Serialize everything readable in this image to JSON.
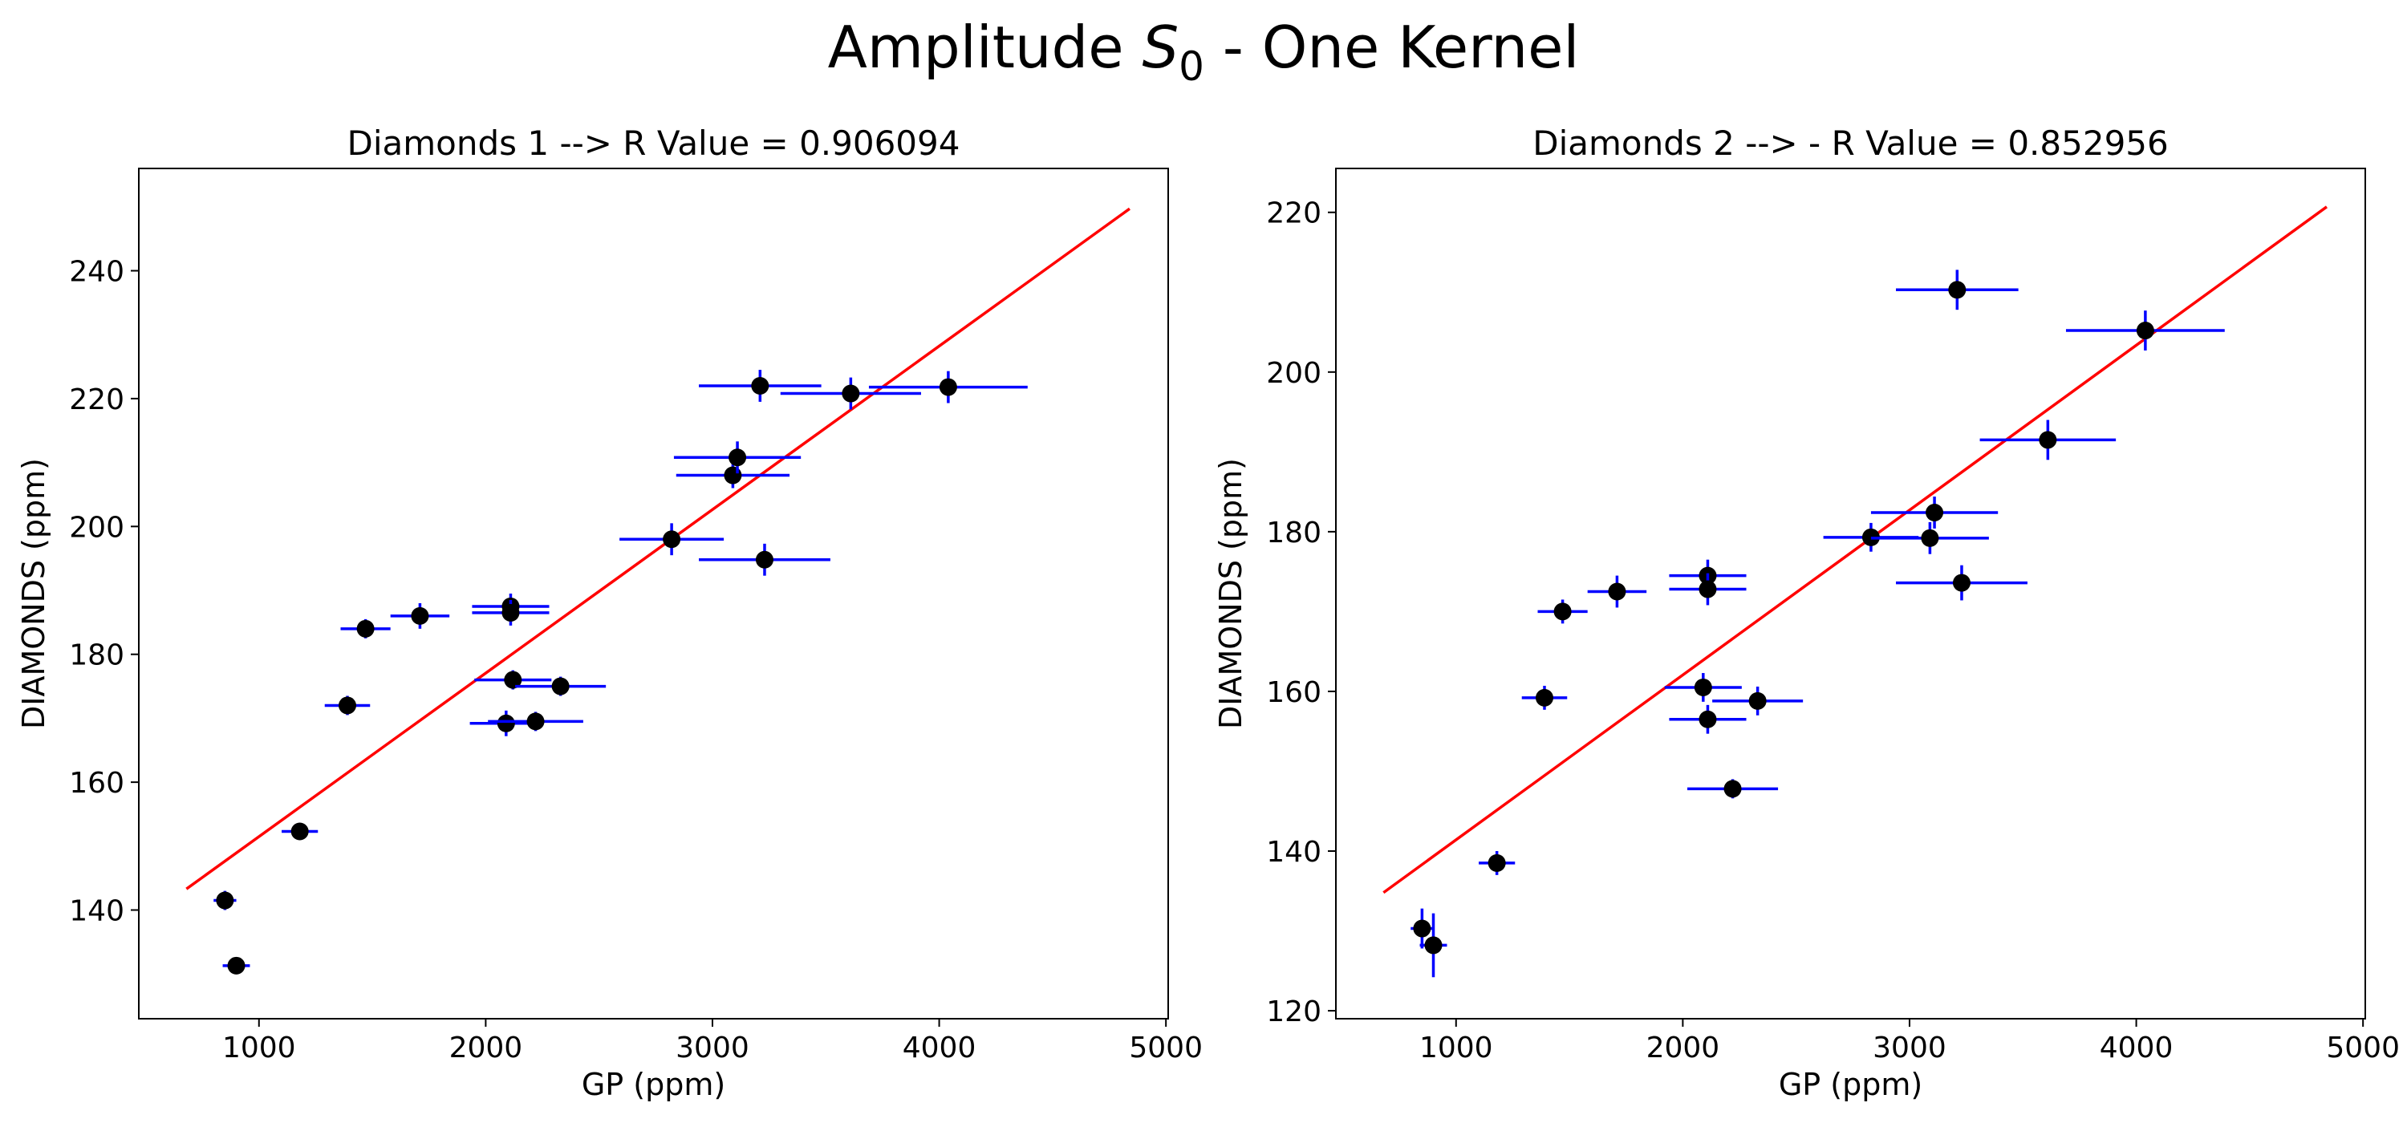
{
  "figure": {
    "suptitle_prefix": "Amplitude ",
    "suptitle_var": "S",
    "suptitle_sub": "0",
    "suptitle_suffix": " - One Kernel"
  },
  "colors": {
    "errorbar": "#0000ff",
    "marker": "#000000",
    "fit_line": "#ff0000"
  },
  "chart_data": [
    {
      "type": "scatter",
      "title": "Diamonds 1 --> R Value = 0.906094",
      "xlabel": "GP (ppm)",
      "ylabel": "DIAMONDS (ppm)",
      "xlim": [
        470,
        5010
      ],
      "ylim": [
        123,
        256
      ],
      "xticks": [
        1000,
        2000,
        3000,
        4000,
        5000
      ],
      "yticks": [
        140,
        160,
        180,
        200,
        220,
        240
      ],
      "grid": false,
      "points": [
        {
          "x": 850,
          "y": 141.5,
          "xerr": 50,
          "yerr": 1.5
        },
        {
          "x": 900,
          "y": 131.3,
          "xerr": 60,
          "yerr": 1.0
        },
        {
          "x": 1180,
          "y": 152.3,
          "xerr": 80,
          "yerr": 1.0
        },
        {
          "x": 1390,
          "y": 172.0,
          "xerr": 100,
          "yerr": 1.5
        },
        {
          "x": 1470,
          "y": 184.0,
          "xerr": 110,
          "yerr": 1.5
        },
        {
          "x": 1710,
          "y": 186.0,
          "xerr": 130,
          "yerr": 2.0
        },
        {
          "x": 2090,
          "y": 169.2,
          "xerr": 160,
          "yerr": 2.0
        },
        {
          "x": 2110,
          "y": 187.5,
          "xerr": 170,
          "yerr": 2.0
        },
        {
          "x": 2110,
          "y": 186.5,
          "xerr": 170,
          "yerr": 2.0
        },
        {
          "x": 2120,
          "y": 176.0,
          "xerr": 170,
          "yerr": 1.5
        },
        {
          "x": 2220,
          "y": 169.5,
          "xerr": 210,
          "yerr": 1.5
        },
        {
          "x": 2330,
          "y": 175.0,
          "xerr": 200,
          "yerr": 1.5
        },
        {
          "x": 2820,
          "y": 198.0,
          "xerr": 230,
          "yerr": 2.5
        },
        {
          "x": 3090,
          "y": 208.0,
          "xerr": 250,
          "yerr": 2.0
        },
        {
          "x": 3110,
          "y": 210.8,
          "xerr": 280,
          "yerr": 2.5
        },
        {
          "x": 3210,
          "y": 222.0,
          "xerr": 270,
          "yerr": 2.5
        },
        {
          "x": 3230,
          "y": 194.8,
          "xerr": 290,
          "yerr": 2.5
        },
        {
          "x": 3610,
          "y": 220.8,
          "xerr": 310,
          "yerr": 2.5
        },
        {
          "x": 4040,
          "y": 221.8,
          "xerr": 350,
          "yerr": 2.5
        }
      ],
      "fit_line": {
        "x": [
          680,
          4840
        ],
        "y": [
          143.3,
          249.7
        ]
      }
    },
    {
      "type": "scatter",
      "title": "Diamonds 2 --> - R Value = 0.852956",
      "xlabel": "GP (ppm)",
      "ylabel": "DIAMONDS (ppm)",
      "xlim": [
        470,
        5010
      ],
      "ylim": [
        119,
        225.5
      ],
      "xticks": [
        1000,
        2000,
        3000,
        4000,
        5000
      ],
      "yticks": [
        120,
        140,
        160,
        180,
        200,
        220
      ],
      "grid": false,
      "points": [
        {
          "x": 850,
          "y": 130.3,
          "xerr": 50,
          "yerr": 2.5
        },
        {
          "x": 900,
          "y": 128.2,
          "xerr": 60,
          "yerr": 4.0
        },
        {
          "x": 1180,
          "y": 138.5,
          "xerr": 80,
          "yerr": 1.5
        },
        {
          "x": 1390,
          "y": 159.2,
          "xerr": 100,
          "yerr": 1.5
        },
        {
          "x": 1470,
          "y": 170.0,
          "xerr": 110,
          "yerr": 1.5
        },
        {
          "x": 1710,
          "y": 172.5,
          "xerr": 130,
          "yerr": 2.0
        },
        {
          "x": 2090,
          "y": 160.5,
          "xerr": 170,
          "yerr": 1.8
        },
        {
          "x": 2110,
          "y": 174.5,
          "xerr": 170,
          "yerr": 2.0
        },
        {
          "x": 2110,
          "y": 172.8,
          "xerr": 170,
          "yerr": 2.0
        },
        {
          "x": 2110,
          "y": 156.5,
          "xerr": 170,
          "yerr": 1.8
        },
        {
          "x": 2220,
          "y": 147.8,
          "xerr": 200,
          "yerr": 1.2
        },
        {
          "x": 2330,
          "y": 158.8,
          "xerr": 200,
          "yerr": 1.8
        },
        {
          "x": 2830,
          "y": 179.3,
          "xerr": 210,
          "yerr": 1.8
        },
        {
          "x": 3090,
          "y": 179.2,
          "xerr": 260,
          "yerr": 2.0
        },
        {
          "x": 3110,
          "y": 182.4,
          "xerr": 280,
          "yerr": 2.0
        },
        {
          "x": 3210,
          "y": 210.3,
          "xerr": 270,
          "yerr": 2.5
        },
        {
          "x": 3230,
          "y": 173.6,
          "xerr": 290,
          "yerr": 2.2
        },
        {
          "x": 3610,
          "y": 191.5,
          "xerr": 300,
          "yerr": 2.5
        },
        {
          "x": 4040,
          "y": 205.2,
          "xerr": 350,
          "yerr": 2.5
        }
      ],
      "fit_line": {
        "x": [
          680,
          4840
        ],
        "y": [
          134.8,
          220.7
        ]
      }
    }
  ]
}
